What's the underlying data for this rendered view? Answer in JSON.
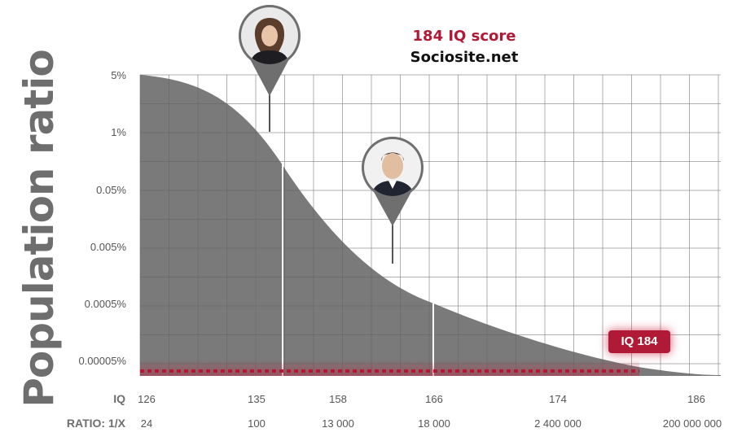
{
  "header": {
    "title": "184 IQ score",
    "source": "Sociosite.net"
  },
  "badge_label": "IQ 184",
  "row_labels": {
    "iq": "IQ",
    "ratio": "RATIO: 1/X"
  },
  "colors": {
    "curve": "#7a7a7a",
    "accent": "#b01a36",
    "grid": "#dedede"
  },
  "pins": [
    {
      "name": "woman-portrait-pin",
      "iq_marker": "135",
      "icon": "woman-portrait-icon"
    },
    {
      "name": "man-portrait-pin",
      "iq_marker": "166",
      "icon": "man-portrait-icon"
    }
  ],
  "chart_data": {
    "type": "area",
    "title": "184 IQ score",
    "subtitle": "Sociosite.net",
    "ylabel": "Population ratio",
    "y_scale": "log",
    "grid": true,
    "y_ticks": [
      "5%",
      "1%",
      "0.05%",
      "0.005%",
      "0.0005%",
      "0.00005%"
    ],
    "x_ticks_iq": [
      "126",
      "135",
      "158",
      "166",
      "174",
      "186"
    ],
    "x_ticks_ratio": [
      "24",
      "100",
      "13 000",
      "18 000",
      "2 400 000",
      "200 000 000"
    ],
    "highlight": {
      "label": "IQ 184",
      "iq": 184
    },
    "markers_iq": [
      135,
      166
    ]
  }
}
